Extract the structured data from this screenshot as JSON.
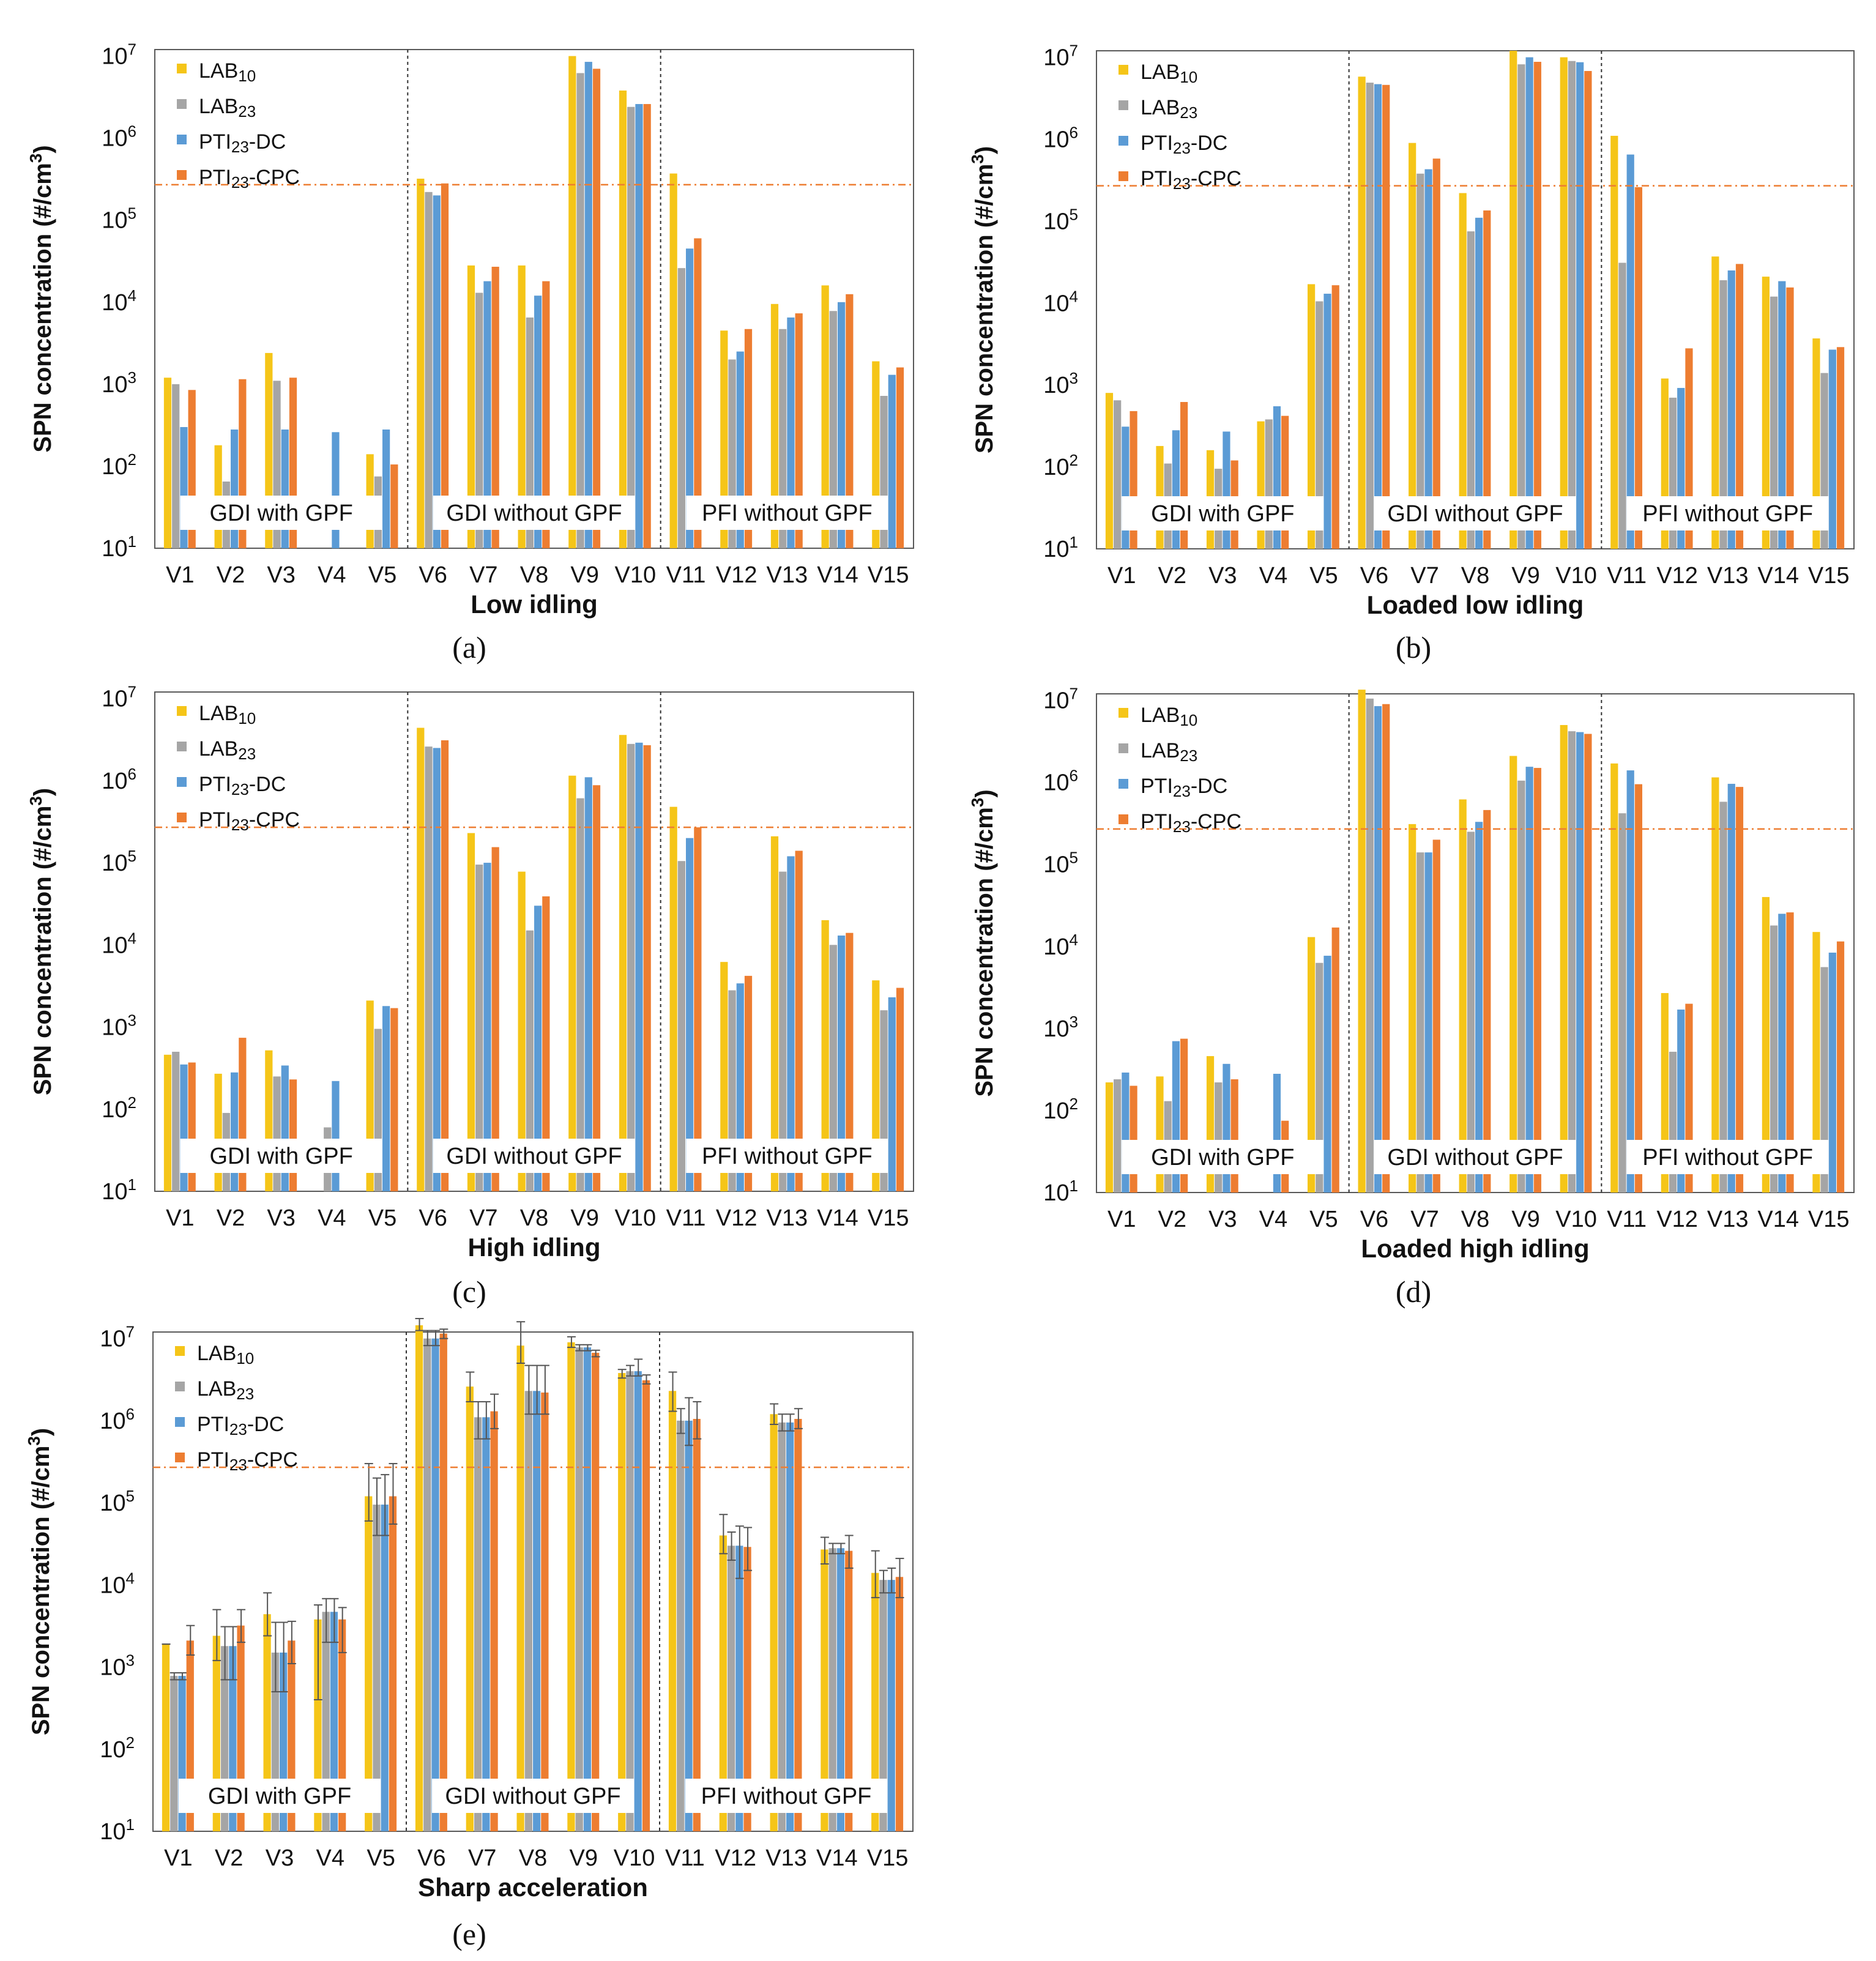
{
  "colors": {
    "lab10": "#F5C518",
    "lab23": "#A5A5A5",
    "pti_dc": "#5B9BD5",
    "pti_cpc": "#ED7D31",
    "threshold": "#ED7D31",
    "frame": "#595959"
  },
  "legend": [
    {
      "base": "LAB",
      "sub": "10",
      "suffix": ""
    },
    {
      "base": "LAB",
      "sub": "23",
      "suffix": ""
    },
    {
      "base": "PTI",
      "sub": "23",
      "suffix": "-DC"
    },
    {
      "base": "PTI",
      "sub": "23",
      "suffix": "-CPC"
    }
  ],
  "y_axis_label": "SPN concentration (#/cm",
  "y_axis_label_sup": "3",
  "y_axis_label_end": ")",
  "y_ticks": [
    {
      "base": "10",
      "exp": "1"
    },
    {
      "base": "10",
      "exp": "2"
    },
    {
      "base": "10",
      "exp": "3"
    },
    {
      "base": "10",
      "exp": "4"
    },
    {
      "base": "10",
      "exp": "5"
    },
    {
      "base": "10",
      "exp": "6"
    },
    {
      "base": "10",
      "exp": "7"
    }
  ],
  "categories": [
    "V1",
    "V2",
    "V3",
    "V4",
    "V5",
    "V6",
    "V7",
    "V8",
    "V9",
    "V10",
    "V11",
    "V12",
    "V13",
    "V14",
    "V15"
  ],
  "groups": [
    "GDI with GPF",
    "GDI without GPF",
    "PFI without GPF"
  ],
  "chart_data": [
    {
      "type": "bar",
      "panel_label": "(a)",
      "xlabel": "Low idling",
      "ylabel": "SPN concentration (#/cm3)",
      "yscale": "log",
      "ylim": [
        10,
        12000000
      ],
      "threshold": 270000,
      "categories": [
        "V1",
        "V2",
        "V3",
        "V4",
        "V5",
        "V6",
        "V7",
        "V8",
        "V9",
        "V10",
        "V11",
        "V12",
        "V13",
        "V14",
        "V15"
      ],
      "series": [
        {
          "name": "LAB10",
          "values": [
            1200,
            180,
            2400,
            null,
            140,
            320000,
            28000,
            28000,
            10000000,
            3800000,
            370000,
            4500,
            9500,
            16000,
            1900
          ]
        },
        {
          "name": "LAB23",
          "values": [
            1000,
            65,
            1100,
            null,
            75,
            220000,
            13000,
            6500,
            6200000,
            2400000,
            26000,
            2000,
            4700,
            7800,
            720
          ]
        },
        {
          "name": "PTI23-DC",
          "values": [
            300,
            280,
            280,
            260,
            280,
            200000,
            18000,
            12000,
            8500000,
            2600000,
            45000,
            2500,
            6500,
            10000,
            1300
          ]
        },
        {
          "name": "PTI23-CPC",
          "values": [
            850,
            1150,
            1200,
            null,
            105,
            280000,
            27000,
            18000,
            7000000,
            2600000,
            60000,
            4700,
            7300,
            12500,
            1600
          ]
        }
      ]
    },
    {
      "type": "bar",
      "panel_label": "(b)",
      "xlabel": "Loaded low idling",
      "ylabel": "SPN concentration (#/cm3)",
      "yscale": "log",
      "ylim": [
        10,
        12000000
      ],
      "threshold": 270000,
      "categories": [
        "V1",
        "V2",
        "V3",
        "V4",
        "V5",
        "V6",
        "V7",
        "V8",
        "V9",
        "V10",
        "V11",
        "V12",
        "V13",
        "V14",
        "V15"
      ],
      "series": [
        {
          "name": "LAB10",
          "values": [
            800,
            180,
            160,
            360,
            17000,
            5800000,
            900000,
            220000,
            12000000,
            10000000,
            1100000,
            1200,
            37000,
            21000,
            3700
          ]
        },
        {
          "name": "LAB23",
          "values": [
            650,
            110,
            95,
            380,
            10500,
            4900000,
            380000,
            75000,
            8200000,
            9000000,
            31000,
            700,
            19000,
            12000,
            1400
          ]
        },
        {
          "name": "PTI23-DC",
          "values": [
            310,
            280,
            270,
            550,
            13000,
            4700000,
            430000,
            110000,
            10000000,
            8700000,
            650000,
            920,
            25000,
            18500,
            2700
          ]
        },
        {
          "name": "PTI23-CPC",
          "values": [
            480,
            620,
            120,
            420,
            16500,
            4600000,
            580000,
            135000,
            8800000,
            6800000,
            260000,
            2800,
            30000,
            15500,
            2900
          ]
        }
      ]
    },
    {
      "type": "bar",
      "panel_label": "(c)",
      "xlabel": "High idling",
      "ylabel": "SPN concentration (#/cm3)",
      "yscale": "log",
      "ylim": [
        10,
        12000000
      ],
      "threshold": 270000,
      "categories": [
        "V1",
        "V2",
        "V3",
        "V4",
        "V5",
        "V6",
        "V7",
        "V8",
        "V9",
        "V10",
        "V11",
        "V12",
        "V13",
        "V14",
        "V15"
      ],
      "series": [
        {
          "name": "LAB10",
          "values": [
            460,
            270,
            520,
            null,
            2100,
            4400000,
            230000,
            78000,
            1150000,
            3600000,
            480000,
            6200,
            210000,
            20000,
            3700
          ]
        },
        {
          "name": "LAB23",
          "values": [
            500,
            90,
            250,
            60,
            950,
            2600000,
            95000,
            15000,
            610000,
            2800000,
            105000,
            2800,
            78000,
            10000,
            1600
          ]
        },
        {
          "name": "PTI23-DC",
          "values": [
            350,
            280,
            340,
            220,
            1800,
            2500000,
            100000,
            30000,
            1100000,
            2900000,
            200000,
            3400,
            120000,
            13000,
            2300
          ]
        },
        {
          "name": "PTI23-CPC",
          "values": [
            370,
            740,
            230,
            null,
            1700,
            3100000,
            155000,
            39000,
            880000,
            2700000,
            270000,
            4200,
            140000,
            14000,
            3000
          ]
        }
      ]
    },
    {
      "type": "bar",
      "panel_label": "(d)",
      "xlabel": "Loaded high idling",
      "ylabel": "SPN concentration (#/cm3)",
      "yscale": "log",
      "ylim": [
        10,
        12000000
      ],
      "threshold": 270000,
      "categories": [
        "V1",
        "V2",
        "V3",
        "V4",
        "V5",
        "V6",
        "V7",
        "V8",
        "V9",
        "V10",
        "V11",
        "V12",
        "V13",
        "V14",
        "V15"
      ],
      "series": [
        {
          "name": "LAB10",
          "values": [
            220,
            260,
            460,
            null,
            13000,
            13500000,
            310000,
            620000,
            2100000,
            5000000,
            1700000,
            2700,
            1150000,
            40000,
            15000
          ]
        },
        {
          "name": "LAB23",
          "values": [
            240,
            130,
            220,
            null,
            6300,
            10500000,
            140000,
            250000,
            1050000,
            4200000,
            420000,
            520,
            580000,
            18000,
            5600
          ]
        },
        {
          "name": "PTI23-DC",
          "values": [
            290,
            700,
            370,
            280,
            7700,
            8500000,
            140000,
            330000,
            1550000,
            4100000,
            1400000,
            1700,
            960000,
            25000,
            8400
          ]
        },
        {
          "name": "PTI23-CPC",
          "values": [
            200,
            750,
            240,
            75,
            17000,
            9000000,
            200000,
            460000,
            1500000,
            3900000,
            950000,
            2000,
            880000,
            26000,
            11500
          ]
        }
      ]
    },
    {
      "type": "bar",
      "panel_label": "(e)",
      "xlabel": "Sharp acceleration",
      "ylabel": "SPN concentration (#/cm3)",
      "yscale": "log",
      "ylim": [
        10,
        12000000
      ],
      "threshold": 270000,
      "error_bars": true,
      "categories": [
        "V1",
        "V2",
        "V3",
        "V4",
        "V5",
        "V6",
        "V7",
        "V8",
        "V9",
        "V10",
        "V11",
        "V12",
        "V13",
        "V14",
        "V15"
      ],
      "series": [
        {
          "name": "LAB10",
          "values": [
            1900,
            2400,
            4400,
            3800,
            120000,
            14500000,
            2600000,
            8200000,
            9000000,
            3800000,
            2300000,
            40000,
            1200000,
            27000,
            14000
          ],
          "err_high": [
            1900,
            5000,
            8000,
            5700,
            300000,
            17500000,
            3900000,
            16000000,
            10500000,
            4200000,
            3900000,
            72000,
            1600000,
            38000,
            26000
          ],
          "err_low": [
            1900,
            1200,
            2400,
            400,
            60000,
            12500000,
            1700000,
            5000000,
            7800000,
            3300000,
            1300000,
            24000,
            900000,
            18000,
            7000
          ]
        },
        {
          "name": "LAB23",
          "values": [
            780,
            1800,
            1500,
            4700,
            95000,
            10000000,
            1100000,
            2300000,
            7800000,
            4000000,
            1000000,
            30000,
            950000,
            28000,
            11500
          ],
          "err_high": [
            850,
            3100,
            3500,
            6800,
            200000,
            12500000,
            1700000,
            4700000,
            8400000,
            4700000,
            1400000,
            44000,
            1200000,
            32000,
            15000
          ],
          "err_low": [
            700,
            700,
            500,
            2000,
            40000,
            8200000,
            600000,
            1200000,
            7100000,
            3500000,
            700000,
            20000,
            750000,
            24000,
            8000
          ]
        },
        {
          "name": "PTI23-DC",
          "values": [
            780,
            1800,
            1500,
            4700,
            95000,
            10000000,
            1100000,
            2300000,
            7800000,
            4000000,
            1000000,
            30000,
            950000,
            28000,
            11500
          ],
          "err_high": [
            850,
            3100,
            3500,
            6800,
            220000,
            12500000,
            1700000,
            4700000,
            8400000,
            5600000,
            1900000,
            52000,
            1200000,
            32000,
            16000
          ],
          "err_low": [
            700,
            700,
            500,
            2000,
            40000,
            8200000,
            600000,
            1200000,
            7100000,
            3500000,
            500000,
            12000,
            750000,
            24000,
            8000
          ]
        },
        {
          "name": "PTI23-CPC",
          "values": [
            2100,
            3200,
            2100,
            3800,
            120000,
            11500000,
            1300000,
            2200000,
            6700000,
            3100000,
            1050000,
            29000,
            1050000,
            26000,
            12500
          ],
          "err_high": [
            3200,
            5000,
            3600,
            5300,
            300000,
            13000000,
            2100000,
            4700000,
            7200000,
            3600000,
            1700000,
            50000,
            1400000,
            40000,
            21000
          ],
          "err_low": [
            1400,
            2000,
            1100,
            1500,
            55000,
            10000000,
            800000,
            1200000,
            6000000,
            2800000,
            600000,
            15000,
            800000,
            16000,
            7000
          ]
        }
      ]
    }
  ]
}
